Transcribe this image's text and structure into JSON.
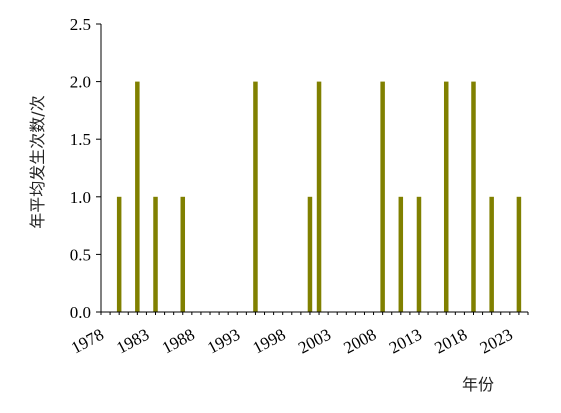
{
  "chart_data": {
    "type": "bar",
    "xlabel": "年份",
    "ylabel": "年平均发生次数/次",
    "ylim": [
      0,
      2.5
    ],
    "xlim": [
      1978,
      2025
    ],
    "yticks": [
      "0.0",
      "0.5",
      "1.0",
      "1.5",
      "2.0",
      "2.5"
    ],
    "xticks": [
      "1978",
      "1983",
      "1988",
      "1993",
      "1998",
      "2003",
      "2008",
      "2013",
      "2018",
      "2023"
    ],
    "bar_color": "#808000",
    "grid": false,
    "legend": "none",
    "x": [
      1980,
      1982,
      1984,
      1987,
      1995,
      2001,
      2002,
      2009,
      2011,
      2013,
      2016,
      2019,
      2021,
      2024
    ],
    "values": [
      1,
      2,
      1,
      1,
      2,
      1,
      2,
      2,
      1,
      1,
      2,
      2,
      1,
      1
    ]
  }
}
